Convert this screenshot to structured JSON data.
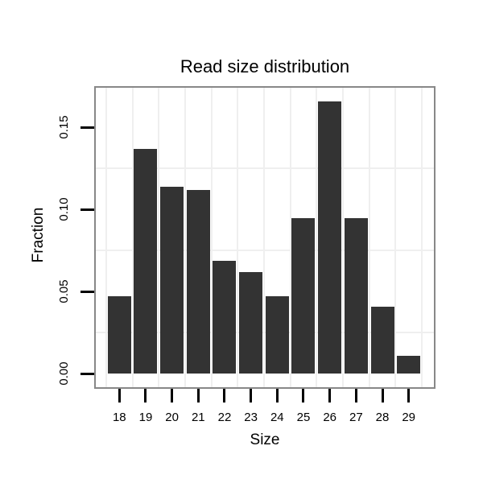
{
  "chart_data": {
    "type": "bar",
    "title": "Read size distribution",
    "xlabel": "Size",
    "ylabel": "Fraction",
    "categories": [
      "18",
      "19",
      "20",
      "21",
      "22",
      "23",
      "24",
      "25",
      "26",
      "27",
      "28",
      "29"
    ],
    "values": [
      0.047,
      0.137,
      0.114,
      0.112,
      0.069,
      0.062,
      0.047,
      0.095,
      0.166,
      0.095,
      0.041,
      0.011
    ],
    "ylim": [
      0,
      0.175
    ],
    "ytick_labels": [
      "0.00",
      "0.05",
      "0.10",
      "0.15"
    ],
    "ytick_values": [
      0,
      0.05,
      0.1,
      0.15
    ],
    "minor_gridline_values": [
      0.025,
      0.075,
      0.125,
      0.175
    ],
    "grid": "light minor horizontal lines + vertical lines at category boundaries",
    "legend_position": "none",
    "bar_color": "#333333",
    "gridline_color": "#efefef",
    "panel_border_color": "#888888",
    "tick_color": "#000000",
    "text_color": "#000000",
    "background_color": "#ffffff"
  }
}
